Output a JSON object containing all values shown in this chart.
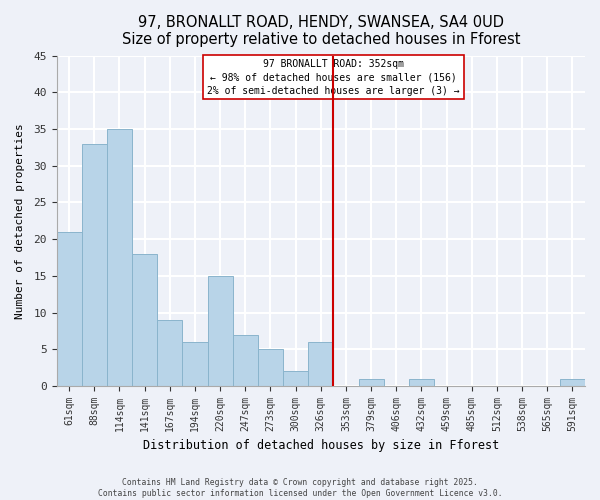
{
  "title": "97, BRONALLT ROAD, HENDY, SWANSEA, SA4 0UD",
  "subtitle": "Size of property relative to detached houses in Fforest",
  "xlabel": "Distribution of detached houses by size in Fforest",
  "ylabel": "Number of detached properties",
  "bin_labels": [
    "61sqm",
    "88sqm",
    "114sqm",
    "141sqm",
    "167sqm",
    "194sqm",
    "220sqm",
    "247sqm",
    "273sqm",
    "300sqm",
    "326sqm",
    "353sqm",
    "379sqm",
    "406sqm",
    "432sqm",
    "459sqm",
    "485sqm",
    "512sqm",
    "538sqm",
    "565sqm",
    "591sqm"
  ],
  "bar_values": [
    21,
    33,
    35,
    18,
    9,
    6,
    15,
    7,
    5,
    2,
    6,
    0,
    1,
    0,
    1,
    0,
    0,
    0,
    0,
    0,
    1
  ],
  "bar_color": "#b8d4e8",
  "bar_edge_color": "#8ab4cc",
  "vline_color": "#cc0000",
  "annotation_title": "97 BRONALLT ROAD: 352sqm",
  "annotation_line1": "← 98% of detached houses are smaller (156)",
  "annotation_line2": "2% of semi-detached houses are larger (3) →",
  "ylim": [
    0,
    45
  ],
  "yticks": [
    0,
    5,
    10,
    15,
    20,
    25,
    30,
    35,
    40,
    45
  ],
  "background_color": "#eef1f8",
  "grid_color": "#ffffff",
  "footer1": "Contains HM Land Registry data © Crown copyright and database right 2025.",
  "footer2": "Contains public sector information licensed under the Open Government Licence v3.0."
}
